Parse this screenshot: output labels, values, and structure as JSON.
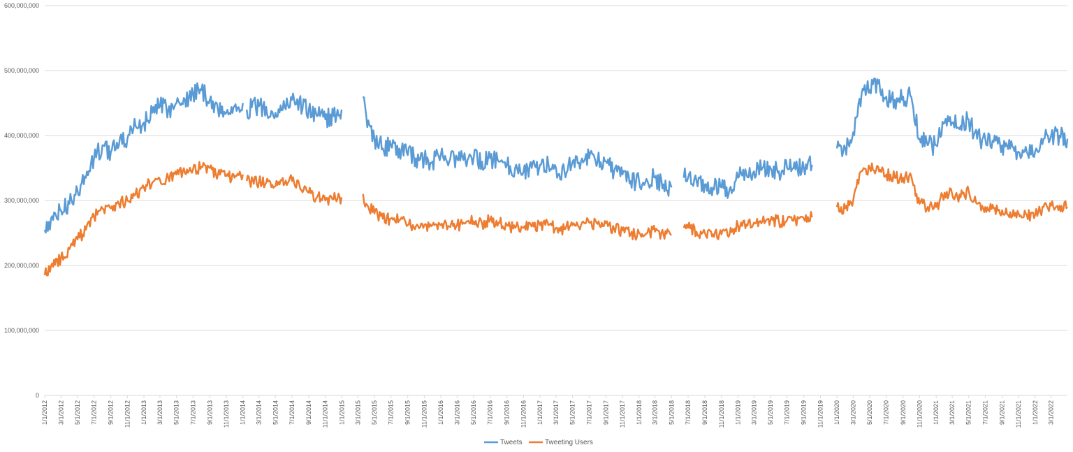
{
  "chart_data": {
    "type": "line",
    "title": "",
    "xlabel": "",
    "ylabel": "",
    "ylim": [
      0,
      600000000
    ],
    "xlim": [
      "1/1/2012",
      "4/30/2022"
    ],
    "grid": "horizontal",
    "legend_placement": "bottom-center",
    "y_ticks": [
      "0",
      "100,000,000",
      "200,000,000",
      "300,000,000",
      "400,000,000",
      "500,000,000",
      "600,000,000"
    ],
    "x_ticks": [
      "1/1/2012",
      "3/1/2012",
      "5/1/2012",
      "7/1/2012",
      "9/1/2012",
      "11/1/2012",
      "1/1/2013",
      "3/1/2013",
      "5/1/2013",
      "7/1/2013",
      "9/1/2013",
      "11/1/2013",
      "1/1/2014",
      "3/1/2014",
      "5/1/2014",
      "7/1/2014",
      "9/1/2014",
      "11/1/2014",
      "1/1/2015",
      "3/1/2015",
      "5/1/2015",
      "7/1/2015",
      "9/1/2015",
      "11/1/2015",
      "1/1/2016",
      "3/1/2016",
      "5/1/2016",
      "7/1/2016",
      "9/1/2016",
      "11/1/2016",
      "1/1/2017",
      "3/1/2017",
      "5/1/2017",
      "7/1/2017",
      "9/1/2017",
      "11/1/2017",
      "1/1/2018",
      "3/1/2018",
      "5/1/2018",
      "7/1/2018",
      "9/1/2018",
      "11/1/2018",
      "1/1/2019",
      "3/1/2019",
      "5/1/2019",
      "7/1/2019",
      "9/1/2019",
      "11/1/2019",
      "1/1/2020",
      "3/1/2020",
      "5/1/2020",
      "7/1/2020",
      "9/1/2020",
      "11/1/2020",
      "1/1/2021",
      "3/1/2021",
      "5/1/2021",
      "7/1/2021",
      "9/1/2021",
      "11/1/2021",
      "1/1/2022",
      "3/1/2022"
    ],
    "series": [
      {
        "name": "Tweets",
        "color": "#5B9BD5",
        "segments": [
          {
            "x": [
              "1/1/2012",
              "2/1/2012",
              "3/1/2012",
              "4/1/2012",
              "5/1/2012",
              "6/1/2012",
              "7/1/2012",
              "8/1/2012",
              "9/1/2012",
              "10/1/2012",
              "11/1/2012",
              "12/1/2012",
              "1/1/2013",
              "2/1/2013",
              "3/1/2013",
              "4/1/2013",
              "5/1/2013",
              "6/1/2013",
              "7/1/2013",
              "8/1/2013",
              "9/1/2013",
              "10/1/2013",
              "11/1/2013",
              "12/1/2013",
              "1/1/2014"
            ],
            "y": [
              255000000,
              270000000,
              285000000,
              295000000,
              315000000,
              335000000,
              365000000,
              385000000,
              375000000,
              385000000,
              395000000,
              415000000,
              420000000,
              435000000,
              445000000,
              440000000,
              450000000,
              455000000,
              465000000,
              470000000,
              455000000,
              440000000,
              435000000,
              445000000,
              450000000
            ]
          },
          {
            "x": [
              "1/15/2014",
              "3/1/2014",
              "5/1/2014",
              "7/1/2014",
              "9/1/2014",
              "10/1/2014",
              "11/1/2014",
              "12/1/2014",
              "12/31/2014"
            ],
            "y": [
              440000000,
              445000000,
              435000000,
              455000000,
              440000000,
              430000000,
              425000000,
              430000000,
              440000000
            ]
          },
          {
            "x": [
              "3/20/2015",
              "4/1/2015",
              "5/1/2015",
              "6/1/2015",
              "7/1/2015",
              "8/1/2015",
              "9/1/2015",
              "10/1/2015",
              "11/1/2015",
              "12/1/2015",
              "1/1/2016",
              "2/1/2016",
              "3/1/2016",
              "4/1/2016",
              "5/1/2016",
              "6/1/2016",
              "7/1/2016",
              "8/1/2016",
              "9/1/2016",
              "10/1/2016",
              "11/1/2016",
              "12/1/2016",
              "1/1/2017",
              "2/1/2017",
              "3/1/2017",
              "4/1/2017",
              "5/1/2017",
              "6/1/2017",
              "7/1/2017",
              "8/1/2017",
              "9/1/2017",
              "10/1/2017",
              "11/1/2017",
              "12/1/2017",
              "1/1/2018",
              "2/1/2018",
              "3/1/2018",
              "4/1/2018",
              "5/1/2018"
            ],
            "y": [
              460000000,
              430000000,
              395000000,
              380000000,
              385000000,
              380000000,
              370000000,
              365000000,
              365000000,
              360000000,
              370000000,
              360000000,
              365000000,
              360000000,
              365000000,
              360000000,
              365000000,
              360000000,
              355000000,
              350000000,
              345000000,
              350000000,
              355000000,
              355000000,
              350000000,
              345000000,
              360000000,
              360000000,
              365000000,
              360000000,
              360000000,
              345000000,
              340000000,
              330000000,
              330000000,
              330000000,
              335000000,
              325000000,
              320000000
            ]
          },
          {
            "x": [
              "6/15/2018",
              "7/1/2018",
              "8/1/2018",
              "9/1/2018",
              "10/1/2018",
              "11/1/2018",
              "12/1/2018",
              "1/1/2019",
              "2/1/2019",
              "3/1/2019",
              "4/1/2019",
              "5/1/2019",
              "6/1/2019",
              "7/1/2019",
              "8/1/2019",
              "9/1/2019",
              "10/1/2019"
            ],
            "y": [
              335000000,
              335000000,
              330000000,
              325000000,
              320000000,
              320000000,
              318000000,
              335000000,
              340000000,
              345000000,
              350000000,
              350000000,
              345000000,
              350000000,
              348000000,
              350000000,
              355000000
            ]
          },
          {
            "x": [
              "1/1/2020",
              "2/1/2020",
              "3/1/2020",
              "4/1/2020",
              "5/1/2020",
              "6/1/2020",
              "7/1/2020",
              "8/1/2020",
              "9/1/2020",
              "10/1/2020",
              "11/1/2020",
              "12/1/2020",
              "1/1/2021",
              "2/1/2021",
              "3/1/2021",
              "4/1/2021",
              "5/1/2021",
              "6/1/2021",
              "7/1/2021",
              "8/1/2021",
              "9/1/2021",
              "10/1/2021",
              "11/1/2021",
              "12/1/2021",
              "1/1/2022",
              "2/1/2022",
              "3/1/2022",
              "4/1/2022",
              "4/30/2022"
            ],
            "y": [
              380000000,
              380000000,
              405000000,
              465000000,
              470000000,
              480000000,
              460000000,
              455000000,
              460000000,
              460000000,
              395000000,
              385000000,
              385000000,
              420000000,
              420000000,
              415000000,
              425000000,
              395000000,
              395000000,
              390000000,
              385000000,
              380000000,
              375000000,
              375000000,
              375000000,
              395000000,
              400000000,
              400000000,
              395000000
            ]
          }
        ]
      },
      {
        "name": "Tweeting Users",
        "color": "#ED7D31",
        "segments": [
          {
            "x": [
              "1/1/2012",
              "2/1/2012",
              "3/1/2012",
              "4/1/2012",
              "5/1/2012",
              "6/1/2012",
              "7/1/2012",
              "8/1/2012",
              "9/1/2012",
              "10/1/2012",
              "11/1/2012",
              "12/1/2012",
              "1/1/2013",
              "2/1/2013",
              "3/1/2013",
              "4/1/2013",
              "5/1/2013",
              "6/1/2013",
              "7/1/2013",
              "8/1/2013",
              "9/1/2013",
              "10/1/2013",
              "11/1/2013",
              "12/1/2013",
              "1/1/2014"
            ],
            "y": [
              185000000,
              198000000,
              212000000,
              225000000,
              240000000,
              255000000,
              275000000,
              288000000,
              288000000,
              295000000,
              300000000,
              310000000,
              320000000,
              328000000,
              332000000,
              335000000,
              340000000,
              342000000,
              348000000,
              352000000,
              350000000,
              340000000,
              338000000,
              335000000,
              340000000
            ]
          },
          {
            "x": [
              "1/15/2014",
              "3/1/2014",
              "5/1/2014",
              "7/1/2014",
              "9/1/2014",
              "10/1/2014",
              "11/1/2014",
              "12/1/2014",
              "12/31/2014"
            ],
            "y": [
              330000000,
              328000000,
              322000000,
              330000000,
              312000000,
              305000000,
              300000000,
              302000000,
              305000000
            ]
          },
          {
            "x": [
              "3/20/2015",
              "4/1/2015",
              "5/1/2015",
              "6/1/2015",
              "7/1/2015",
              "8/1/2015",
              "9/1/2015",
              "10/1/2015",
              "11/1/2015",
              "12/1/2015",
              "1/1/2016",
              "2/1/2016",
              "3/1/2016",
              "4/1/2016",
              "5/1/2016",
              "6/1/2016",
              "7/1/2016",
              "8/1/2016",
              "9/1/2016",
              "10/1/2016",
              "11/1/2016",
              "12/1/2016",
              "1/1/2017",
              "2/1/2017",
              "3/1/2017",
              "4/1/2017",
              "5/1/2017",
              "6/1/2017",
              "7/1/2017",
              "8/1/2017",
              "9/1/2017",
              "10/1/2017",
              "11/1/2017",
              "12/1/2017",
              "1/1/2018",
              "2/1/2018",
              "3/1/2018",
              "4/1/2018",
              "5/1/2018"
            ],
            "y": [
              310000000,
              295000000,
              280000000,
              272000000,
              272000000,
              270000000,
              262000000,
              260000000,
              262000000,
              262000000,
              262000000,
              260000000,
              262000000,
              265000000,
              268000000,
              265000000,
              270000000,
              266000000,
              262000000,
              258000000,
              258000000,
              260000000,
              262000000,
              262000000,
              258000000,
              256000000,
              262000000,
              262000000,
              266000000,
              264000000,
              265000000,
              256000000,
              254000000,
              248000000,
              250000000,
              250000000,
              252000000,
              248000000,
              247000000
            ]
          },
          {
            "x": [
              "6/15/2018",
              "7/1/2018",
              "8/1/2018",
              "9/1/2018",
              "10/1/2018",
              "11/1/2018",
              "12/1/2018",
              "1/1/2019",
              "2/1/2019",
              "3/1/2019",
              "4/1/2019",
              "5/1/2019",
              "6/1/2019",
              "7/1/2019",
              "8/1/2019",
              "9/1/2019",
              "10/1/2019"
            ],
            "y": [
              258000000,
              258000000,
              252000000,
              250000000,
              248000000,
              248000000,
              248000000,
              262000000,
              263000000,
              266000000,
              268000000,
              270000000,
              268000000,
              270000000,
              270000000,
              272000000,
              274000000
            ]
          },
          {
            "x": [
              "1/1/2020",
              "2/1/2020",
              "3/1/2020",
              "4/1/2020",
              "5/1/2020",
              "6/1/2020",
              "7/1/2020",
              "8/1/2020",
              "9/1/2020",
              "10/1/2020",
              "11/1/2020",
              "12/1/2020",
              "1/1/2021",
              "2/1/2021",
              "3/1/2021",
              "4/1/2021",
              "5/1/2021",
              "6/1/2021",
              "7/1/2021",
              "8/1/2021",
              "9/1/2021",
              "10/1/2021",
              "11/1/2021",
              "12/1/2021",
              "1/1/2022",
              "2/1/2022",
              "3/1/2022",
              "4/1/2022",
              "4/30/2022"
            ],
            "y": [
              290000000,
              288000000,
              300000000,
              345000000,
              350000000,
              352000000,
              340000000,
              335000000,
              335000000,
              338000000,
              295000000,
              290000000,
              290000000,
              312000000,
              310000000,
              305000000,
              315000000,
              295000000,
              290000000,
              288000000,
              285000000,
              282000000,
              280000000,
              278000000,
              278000000,
              290000000,
              292000000,
              292000000,
              290000000
            ]
          }
        ]
      }
    ]
  }
}
